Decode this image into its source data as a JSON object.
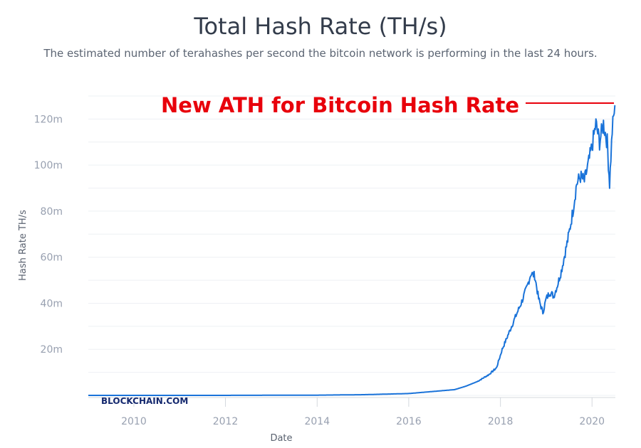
{
  "chart_data": {
    "type": "line",
    "title": "Total Hash Rate (TH/s)",
    "subtitle": "The estimated number of terahashes per second the bitcoin network is performing in the last 24 hours.",
    "xlabel": "Date",
    "ylabel": "Hash Rate TH/s",
    "xlim": [
      "2009-01-03",
      "2020-07-05"
    ],
    "ylim": [
      0,
      130000000
    ],
    "x_ticks": [
      "2010",
      "2012",
      "2014",
      "2016",
      "2018",
      "2020"
    ],
    "y_ticks": [
      "20m",
      "40m",
      "60m",
      "80m",
      "100m",
      "120m"
    ],
    "grid": true,
    "series_color": "#1a73d9",
    "annotation": {
      "text": "New ATH for Bitcoin Hash Rate",
      "color": "#e8000b"
    },
    "watermark": "BLOCKCHAIN.COM",
    "series": [
      {
        "x": [
          "2009-01-03",
          "2012-01-01",
          "2014-01-01",
          "2015-01-01",
          "2016-01-01",
          "2016-06-01",
          "2017-01-01",
          "2017-04-01",
          "2017-07-01",
          "2017-10-01",
          "2017-12-01",
          "2018-01-15",
          "2018-03-01",
          "2018-04-15",
          "2018-05-15",
          "2018-06-15",
          "2018-08-01",
          "2018-09-01",
          "2018-10-01",
          "2018-11-01",
          "2018-12-05",
          "2019-01-01",
          "2019-02-01",
          "2019-03-01",
          "2019-04-01",
          "2019-05-01",
          "2019-06-01",
          "2019-07-01",
          "2019-08-01",
          "2019-09-01",
          "2019-10-01",
          "2019-11-01",
          "2019-12-01",
          "2020-01-01",
          "2020-02-01",
          "2020-03-01",
          "2020-04-01",
          "2020-05-01",
          "2020-05-20",
          "2020-06-10",
          "2020-07-01"
        ],
        "y": [
          0,
          10000,
          100000,
          300000,
          800000,
          1500000,
          2500000,
          4000000,
          6000000,
          9000000,
          12000000,
          20000000,
          26000000,
          32000000,
          36000000,
          40000000,
          47000000,
          53000000,
          52000000,
          42000000,
          36000000,
          42000000,
          45000000,
          43000000,
          48000000,
          54000000,
          62000000,
          70000000,
          80000000,
          92000000,
          95000000,
          93000000,
          100000000,
          108000000,
          118000000,
          110000000,
          118000000,
          110000000,
          92000000,
          115000000,
          126000000
        ]
      }
    ]
  }
}
